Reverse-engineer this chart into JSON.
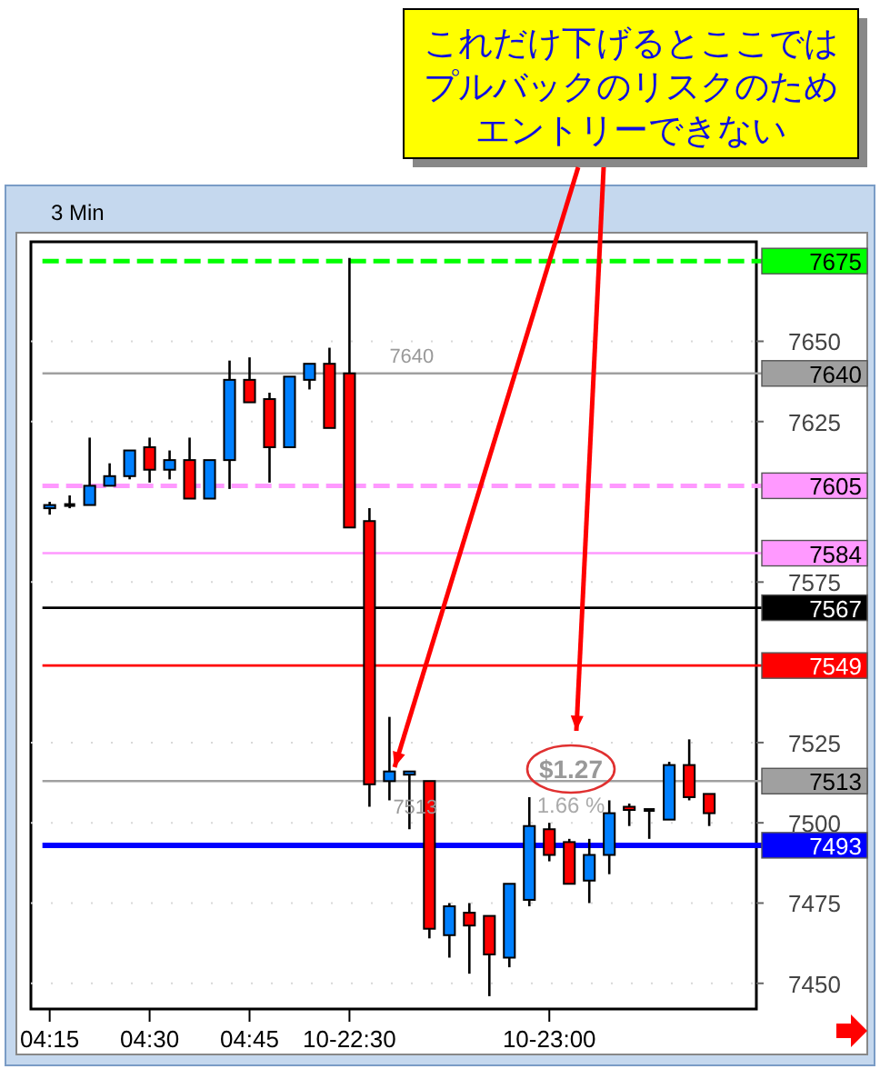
{
  "chart_data": {
    "type": "candlestick",
    "title": "3 Min",
    "categories": [
      "04:15",
      null,
      null,
      null,
      null,
      "04:30",
      null,
      null,
      null,
      null,
      "04:45",
      null,
      null,
      null,
      null,
      "10-22:30",
      null,
      null,
      null,
      null,
      null,
      null,
      null,
      null,
      null,
      "10-23:00",
      null,
      null,
      null,
      null,
      null,
      null,
      null,
      null
    ],
    "ohlc": [
      [
        7598,
        7600,
        7596,
        7599
      ],
      [
        7599,
        7602,
        7598,
        7599
      ],
      [
        7599,
        7620,
        7599,
        7605
      ],
      [
        7605,
        7612,
        7605,
        7608
      ],
      [
        7608,
        7616,
        7607,
        7616
      ],
      [
        7617,
        7620,
        7606,
        7610
      ],
      [
        7610,
        7616,
        7607,
        7613
      ],
      [
        7613,
        7620,
        7601,
        7601
      ],
      [
        7601,
        7613,
        7601,
        7613
      ],
      [
        7613,
        7644,
        7604,
        7638
      ],
      [
        7638,
        7645,
        7631,
        7631
      ],
      [
        7632,
        7634,
        7606,
        7617
      ],
      [
        7617,
        7639,
        7617,
        7639
      ],
      [
        7638,
        7643,
        7635,
        7643
      ],
      [
        7643,
        7648,
        7623,
        7623
      ],
      [
        7640,
        7676,
        7592,
        7592
      ],
      [
        7594,
        7598,
        7505,
        7512
      ],
      [
        7513,
        7533,
        7507,
        7516
      ],
      [
        7515,
        7516,
        7498,
        7516
      ],
      [
        7513,
        7513,
        7464,
        7467
      ],
      [
        7465,
        7475,
        7458,
        7474
      ],
      [
        7472,
        7475,
        7453,
        7468
      ],
      [
        7471,
        7471,
        7446,
        7459
      ],
      [
        7458,
        7481,
        7455,
        7481
      ],
      [
        7476,
        7508,
        7474,
        7499
      ],
      [
        7498,
        7500,
        7488,
        7490
      ],
      [
        7494,
        7495,
        7481,
        7481
      ],
      [
        7482,
        7495,
        7475,
        7490
      ],
      [
        7490,
        7507,
        7484,
        7503
      ],
      [
        7505,
        7506,
        7499,
        7504
      ],
      [
        7504,
        7504,
        7495,
        7504
      ],
      [
        7501,
        7519,
        7501,
        7518
      ],
      [
        7518,
        7526,
        7507,
        7508
      ],
      [
        7509,
        7509,
        7499,
        7503
      ]
    ],
    "colors": [
      "#0080ff",
      "#000000",
      "#0080ff",
      "#0080ff",
      "#0080ff",
      "#ff0000",
      "#0080ff",
      "#ff0000",
      "#0080ff",
      "#0080ff",
      "#ff0000",
      "#ff0000",
      "#0080ff",
      "#0080ff",
      "#ff0000",
      "#ff0000",
      "#ff0000",
      "#0080ff",
      "#0080ff",
      "#ff0000",
      "#0080ff",
      "#ff0000",
      "#ff0000",
      "#0080ff",
      "#0080ff",
      "#ff0000",
      "#ff0000",
      "#0080ff",
      "#0080ff",
      "#ff0000",
      "#000000",
      "#0080ff",
      "#ff0000",
      "#ff0000"
    ],
    "ylim": [
      7442,
      7681
    ],
    "yticks": [
      7450,
      7475,
      7500,
      7525,
      7575,
      7625,
      7650
    ],
    "grid": true,
    "ref_lines": [
      {
        "axis": "y",
        "value": 7675,
        "label": "7675",
        "color": "#00ff00",
        "line_style": "dashed"
      },
      {
        "axis": "y",
        "value": 7640,
        "label": "7640",
        "color": "#a0a0a0",
        "line_style": "solid"
      },
      {
        "axis": "y",
        "value": 7605,
        "label": "7605",
        "color": "#ff99ff",
        "line_style": "dashed"
      },
      {
        "axis": "y",
        "value": 7584,
        "label": "7584",
        "color": "#ff99ff",
        "line_style": "solid"
      },
      {
        "axis": "y",
        "value": 7567,
        "label": "7567",
        "color": "#000000",
        "line_style": "solid"
      },
      {
        "axis": "y",
        "value": 7549,
        "label": "7549",
        "color": "#ff0000",
        "line_style": "solid"
      },
      {
        "axis": "y",
        "value": 7513,
        "label": "7513",
        "color": "#a0a0a0",
        "line_style": "solid"
      },
      {
        "axis": "y",
        "value": 7493,
        "label": "7493",
        "color": "#0000ff",
        "line_style": "solid"
      }
    ],
    "annotations": [
      "これだけ下げるとここではプルバックのリスクのためエントリーできない",
      "$1.27",
      "1.66 %",
      {
        "text": "7640",
        "y": 7640
      },
      {
        "text": "7513",
        "y": 7513
      }
    ]
  }
}
